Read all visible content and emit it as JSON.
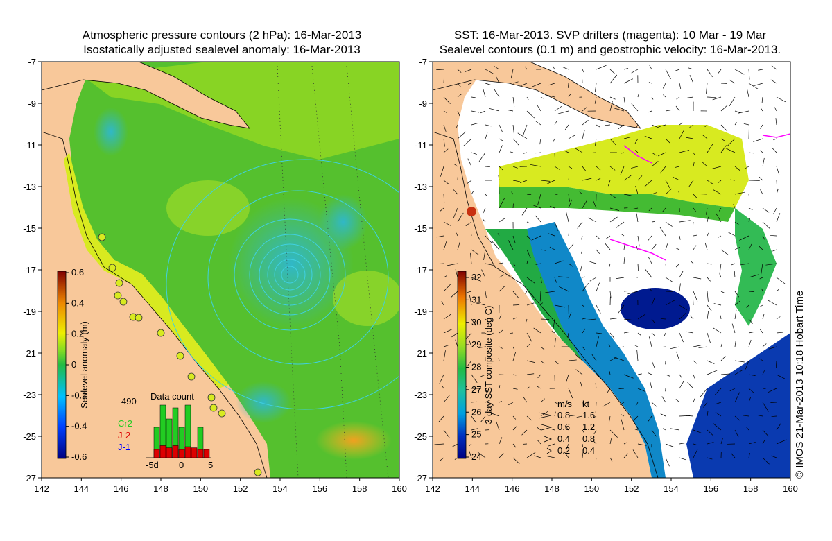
{
  "left_panel": {
    "title_line1": "Atmospheric pressure contours (2 hPa): 16-Mar-2013",
    "title_line2": "Isostatically adjusted sealevel anomaly: 16-Mar-2013",
    "x_ticks": [
      "142",
      "144",
      "146",
      "148",
      "150",
      "152",
      "154",
      "156",
      "158",
      "160"
    ],
    "y_ticks": [
      "-7",
      "-9",
      "-11",
      "-13",
      "-15",
      "-17",
      "-19",
      "-21",
      "-23",
      "-25",
      "-27"
    ],
    "colorbar": {
      "label": "Sealevel anomaly (m)",
      "ticks": [
        "0.6",
        "0.4",
        "0.2",
        "0",
        "-0.2",
        "-0.4",
        "-0.6"
      ],
      "min": -0.6,
      "max": 0.6
    },
    "data_count": {
      "title": "Data count",
      "max_label": "490",
      "x_left": "-5d",
      "x_mid": "0",
      "x_right": "5",
      "series": [
        {
          "name": "Cr2",
          "color": "#22cc22"
        },
        {
          "name": "J-2",
          "color": "#dd0000"
        },
        {
          "name": "J-1",
          "color": "#0000ff"
        }
      ],
      "cr2": [
        0,
        0.55,
        0.95,
        0.7,
        0.9,
        0.55,
        0.95,
        0,
        0.55,
        0
      ],
      "j2": [
        0,
        0.15,
        0.22,
        0.18,
        0.22,
        0.15,
        0.2,
        0.18,
        0.15,
        0.15
      ]
    }
  },
  "right_panel": {
    "title_line1": "SST: 16-Mar-2013. SVP drifters (magenta): 10 Mar - 19 Mar",
    "title_line2": "Sealevel contours (0.1 m) and geostrophic velocity: 16-Mar-2013.",
    "x_ticks": [
      "142",
      "144",
      "146",
      "148",
      "150",
      "152",
      "154",
      "156",
      "158",
      "160"
    ],
    "y_ticks": [
      "-7",
      "-9",
      "-11",
      "-13",
      "-15",
      "-17",
      "-19",
      "-21",
      "-23",
      "-25",
      "-27"
    ],
    "colorbar": {
      "label": "3-day SST composite (deg C)",
      "ticks": [
        "32",
        "31",
        "30",
        "29",
        "28",
        "27",
        "26",
        "25",
        "24"
      ],
      "min": 24,
      "max": 32.5
    },
    "velocity_legend": {
      "header_ms": "m/s",
      "header_kt": "kt",
      "rows": [
        {
          "ms": "0.8",
          "kt": "1.6"
        },
        {
          "ms": "0.6",
          "kt": "1.2"
        },
        {
          "ms": "0.4",
          "kt": "0.8"
        },
        {
          "ms": "0.2",
          "kt": "0.4"
        }
      ]
    }
  },
  "credit": "© IMOS 21-Mar-2013 10:18 Hobart Time",
  "colors": {
    "land": "#f8c89a",
    "sst_white": "#ffffff",
    "drifter": "#ff00ff"
  }
}
